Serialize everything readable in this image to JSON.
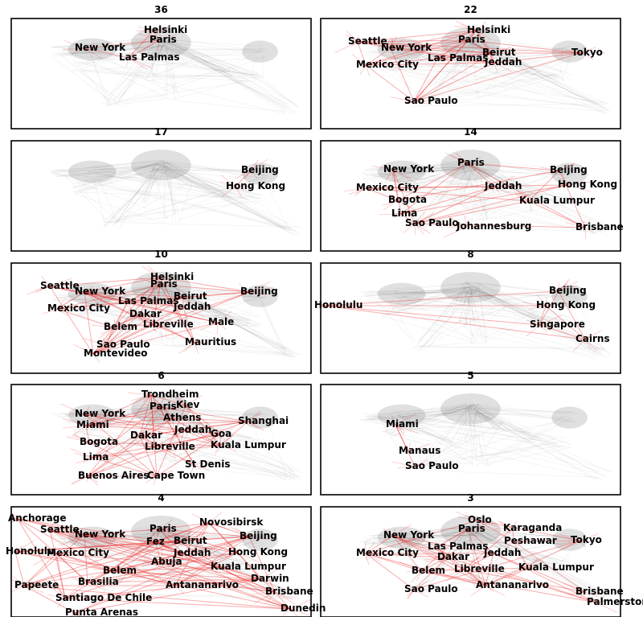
{
  "panels": [
    {
      "title": "36",
      "cities": [
        "Helsinki",
        "Paris",
        "New York",
        "Las Palmas"
      ]
    },
    {
      "title": "22",
      "cities": [
        "Helsinki",
        "Seattle",
        "New York",
        "Paris",
        "Beirut",
        "Tokyo",
        "Mexico City",
        "Las Palmas",
        "Jeddah",
        "Sao Paulo"
      ]
    },
    {
      "title": "17",
      "cities": [
        "Beijing",
        "Hong Kong"
      ]
    },
    {
      "title": "14",
      "cities": [
        "Paris",
        "New York",
        "Beijing",
        "Mexico City",
        "Jeddah",
        "Hong Kong",
        "Bogota",
        "Kuala Lumpur",
        "Lima",
        "Sao Paulo",
        "Johannesburg",
        "Brisbane"
      ]
    },
    {
      "title": "10",
      "cities": [
        "Helsinki",
        "Paris",
        "Seattle",
        "New York",
        "Beijing",
        "Beirut",
        "Mexico City",
        "Las Palmas",
        "Jeddah",
        "Dakar",
        "Belem",
        "Libreville",
        "Male",
        "Sao Paulo",
        "Mauritius",
        "Montevideo"
      ]
    },
    {
      "title": "8",
      "cities": [
        "Beijing",
        "Honolulu",
        "Hong Kong",
        "Singapore",
        "Cairns"
      ]
    },
    {
      "title": "6",
      "cities": [
        "Trondheim",
        "Paris",
        "Kiev",
        "New York",
        "Athens",
        "Shanghai",
        "Miami",
        "Jeddah",
        "Dakar",
        "Goa",
        "Bogota",
        "Libreville",
        "Kuala Lumpur",
        "Lima",
        "St Denis",
        "Buenos Aires",
        "Cape Town"
      ]
    },
    {
      "title": "5",
      "cities": [
        "Miami",
        "Manaus",
        "Sao Paulo"
      ]
    },
    {
      "title": "4",
      "cities": [
        "Anchorage",
        "Novosibirsk",
        "Seattle",
        "New York",
        "Paris",
        "Beijing",
        "Honolulu",
        "Mexico City",
        "Fez",
        "Beirut",
        "Jeddah",
        "Hong Kong",
        "Abuja",
        "Belem",
        "Kuala Lumpur",
        "Brasilia",
        "Darwin",
        "Papeete",
        "Antananarivo",
        "Brisbane",
        "Santiago De Chile",
        "Dunedin",
        "Punta Arenas"
      ]
    },
    {
      "title": "3",
      "cities": [
        "Oslo",
        "Paris",
        "Karaganda",
        "New York",
        "Peshawar",
        "Tokyo",
        "Mexico City",
        "Las Palmas",
        "Dakar",
        "Jeddah",
        "Belem",
        "Libreville",
        "Kuala Lumpur",
        "Sao Paulo",
        "Antananarivo",
        "Brisbane",
        "Palmerston"
      ]
    }
  ],
  "colors": {
    "highlight": "#ee1111",
    "background_edges": "#000000",
    "frame": "#000000"
  }
}
